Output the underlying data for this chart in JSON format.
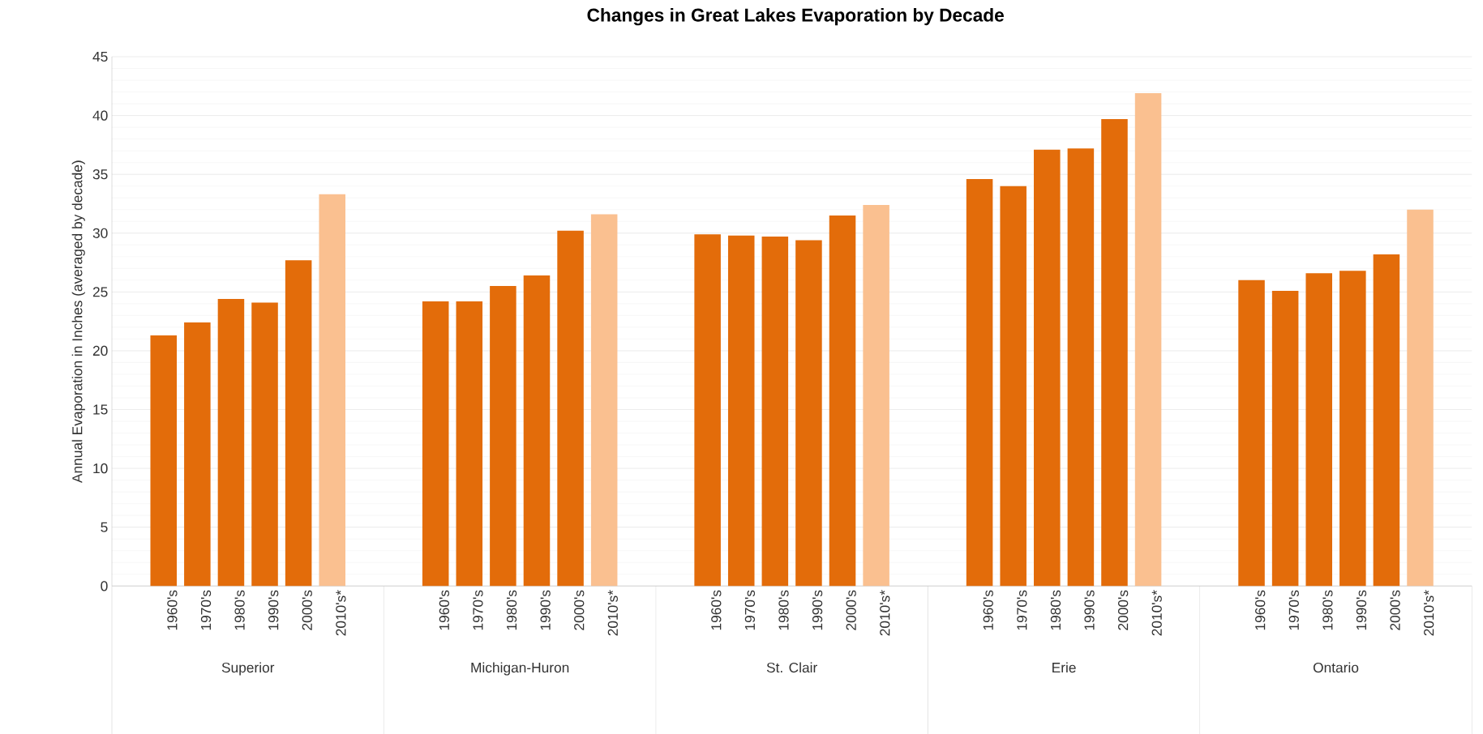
{
  "chart_data": {
    "type": "bar",
    "title": "Changes in Great Lakes Evaporation by Decade",
    "ylabel": "Annual Evaporation in Inches (averaged by decade)",
    "categories": [
      "Superior",
      "Michigan-Huron",
      "St. Clair",
      "Erie",
      "Ontario"
    ],
    "series": [
      {
        "name": "1960's",
        "color": "#e36c0a",
        "values": [
          21.3,
          24.2,
          29.9,
          34.6,
          26.0
        ]
      },
      {
        "name": "1970's",
        "color": "#e36c0a",
        "values": [
          22.4,
          24.2,
          29.8,
          34.0,
          25.1
        ]
      },
      {
        "name": "1980's",
        "color": "#e36c0a",
        "values": [
          24.4,
          25.5,
          29.7,
          37.1,
          26.6
        ]
      },
      {
        "name": "1990's",
        "color": "#e36c0a",
        "values": [
          24.1,
          26.4,
          29.4,
          37.2,
          26.8
        ]
      },
      {
        "name": "2000's",
        "color": "#e36c0a",
        "values": [
          27.7,
          30.2,
          31.5,
          39.7,
          28.2
        ]
      },
      {
        "name": "2010's*",
        "color": "#fac090",
        "values": [
          33.3,
          31.6,
          32.4,
          41.9,
          32.0
        ]
      }
    ],
    "ylim": [
      0,
      45
    ],
    "yticks": [
      0,
      5,
      10,
      15,
      20,
      25,
      30,
      35,
      40,
      45
    ],
    "grid": "y"
  }
}
